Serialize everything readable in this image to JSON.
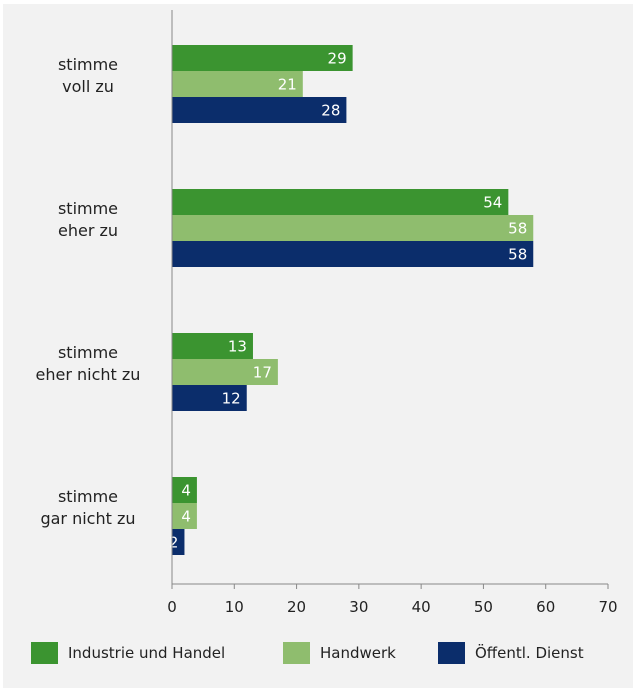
{
  "chart_data": {
    "type": "bar",
    "orientation": "horizontal",
    "categories": [
      [
        "stimme",
        "voll zu"
      ],
      [
        "stimme",
        "eher zu"
      ],
      [
        "stimme",
        "eher nicht zu"
      ],
      [
        "stimme",
        "gar nicht zu"
      ]
    ],
    "series": [
      {
        "name": "Industrie und Handel",
        "color": "#3b9430",
        "values": [
          29,
          54,
          13,
          4
        ]
      },
      {
        "name": "Handwerk",
        "color": "#8fbd6e",
        "values": [
          21,
          58,
          17,
          4
        ]
      },
      {
        "name": "Öffentl. Dienst",
        "color": "#0b2d6b",
        "values": [
          28,
          58,
          12,
          2
        ]
      }
    ],
    "xlim": [
      0,
      70
    ],
    "xticks": [
      0,
      10,
      20,
      30,
      40,
      50,
      60,
      70
    ],
    "grid": false,
    "legend_position": "bottom"
  }
}
